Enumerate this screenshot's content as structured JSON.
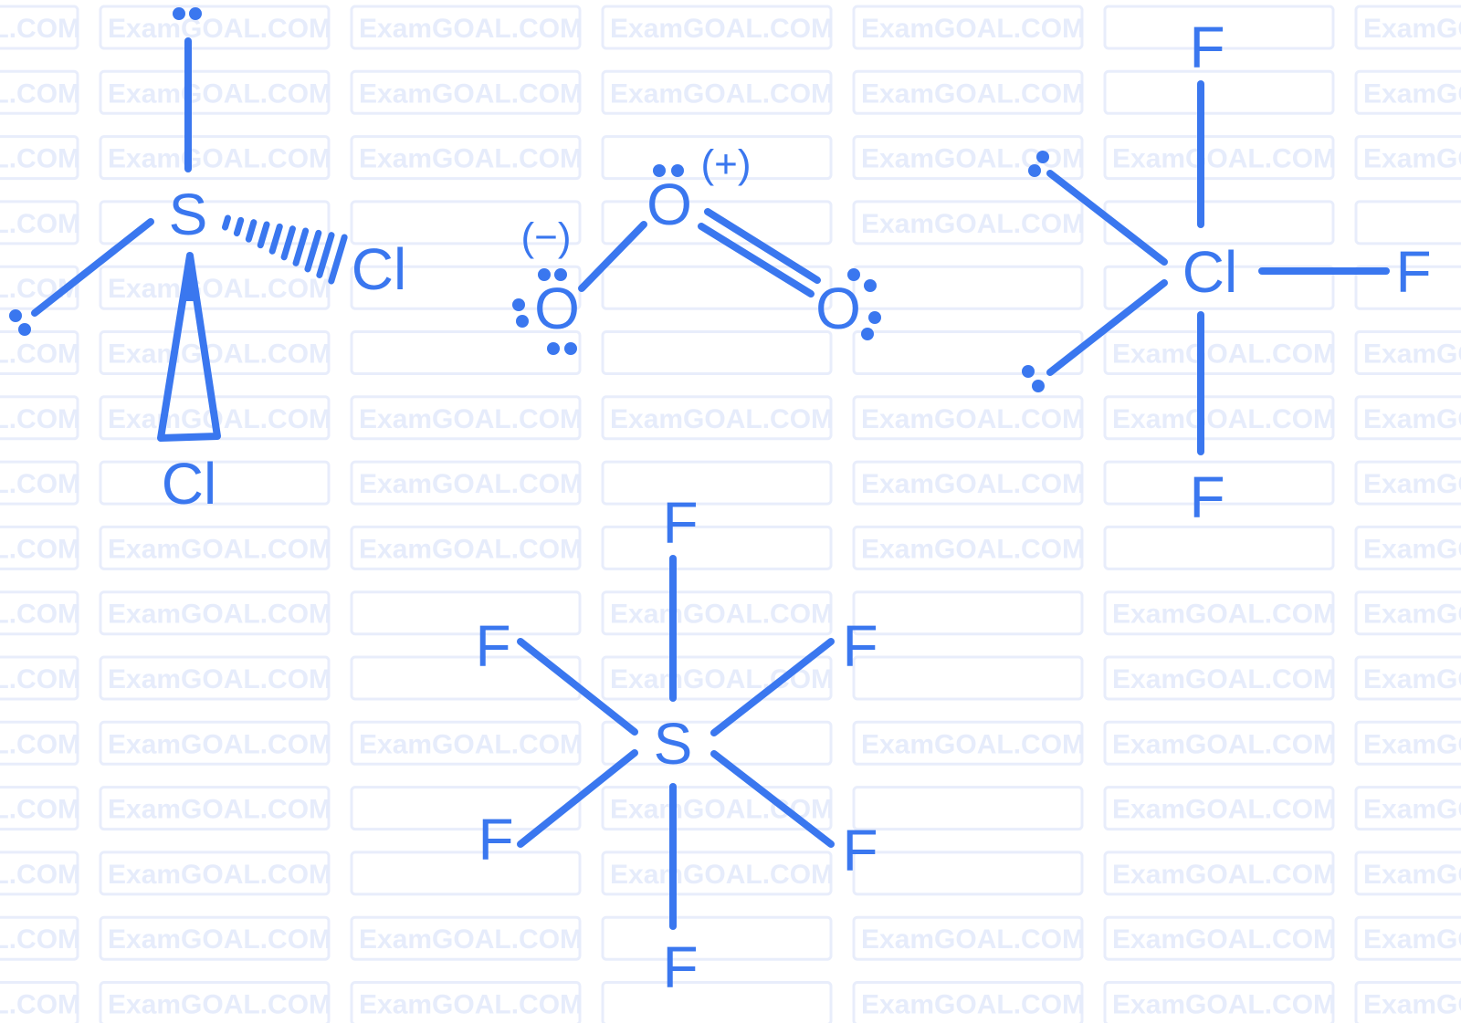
{
  "watermark": {
    "text": "ExamGOAL.COM"
  },
  "colors": {
    "ink": "#3a77ef",
    "watermark": "#e6ecfb"
  },
  "molecules": [
    {
      "central": "S",
      "ligands": [
        "Cl",
        "Cl"
      ]
    },
    {
      "atoms": [
        "O",
        "O",
        "O"
      ],
      "charges": [
        "(−)",
        "(+)"
      ]
    },
    {
      "central": "Cl",
      "ligands": [
        "F",
        "F",
        "F"
      ]
    },
    {
      "central": "S",
      "ligands": [
        "F",
        "F",
        "F",
        "F",
        "F",
        "F"
      ]
    }
  ]
}
